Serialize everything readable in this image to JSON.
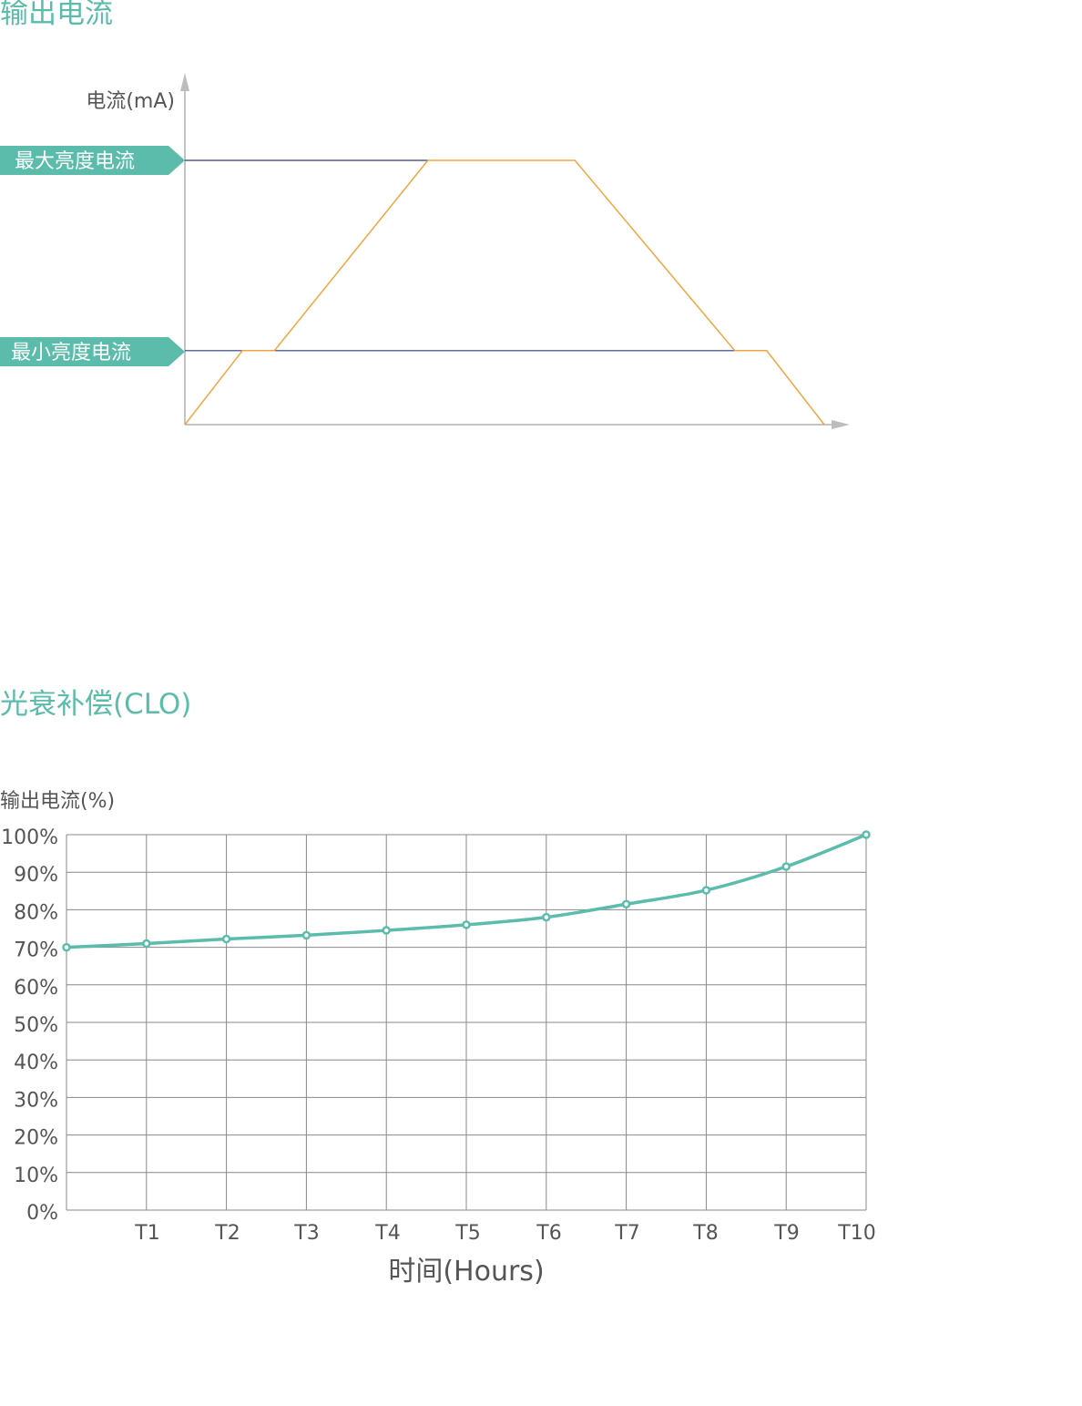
{
  "sections": {
    "output_current_title": "输出电流",
    "clo_title": "光衰补偿(CLO)"
  },
  "colors": {
    "accent": "#5cbcab",
    "trapezoid": "#f0a640",
    "reference_line": "#2f3a82",
    "axis": "#999999",
    "grid": "#888888",
    "text": "#555555"
  },
  "chart_data": [
    {
      "type": "line",
      "ylabel": "电流(mA)",
      "xlabel": "",
      "level_labels": {
        "max": "最大亮度电流",
        "min": "最小亮度电流"
      },
      "levels": {
        "max": 1,
        "min": 0.28
      },
      "series": [
        {
          "x": [
            0,
            0.09,
            0.14,
            0.38,
            0.61,
            0.86,
            0.91,
            1.0
          ],
          "y": [
            0,
            0.28,
            0.28,
            1,
            1,
            0.28,
            0.28,
            0
          ]
        }
      ],
      "grid": false
    },
    {
      "type": "line",
      "ylabel": "输出电流(%)",
      "xlabel": "时间(Hours)",
      "categories": [
        "",
        "T1",
        "T2",
        "T3",
        "T4",
        "T5",
        "T6",
        "T7",
        "T8",
        "T9",
        "T10"
      ],
      "x_tick_labels": [
        "T1",
        "T2",
        "T3",
        "T4",
        "T5",
        "T6",
        "T7",
        "T8",
        "T9",
        "T10"
      ],
      "y_tick_labels": [
        "100%",
        "90%",
        "80%",
        "70%",
        "60%",
        "50%",
        "40%",
        "30%",
        "20%",
        "10%",
        "0%"
      ],
      "ylim": [
        0,
        100
      ],
      "series": [
        {
          "values": [
            70,
            71,
            72.2,
            73.2,
            74.5,
            76,
            78,
            81.5,
            85.2,
            91.5,
            100
          ]
        }
      ],
      "grid": true
    }
  ]
}
